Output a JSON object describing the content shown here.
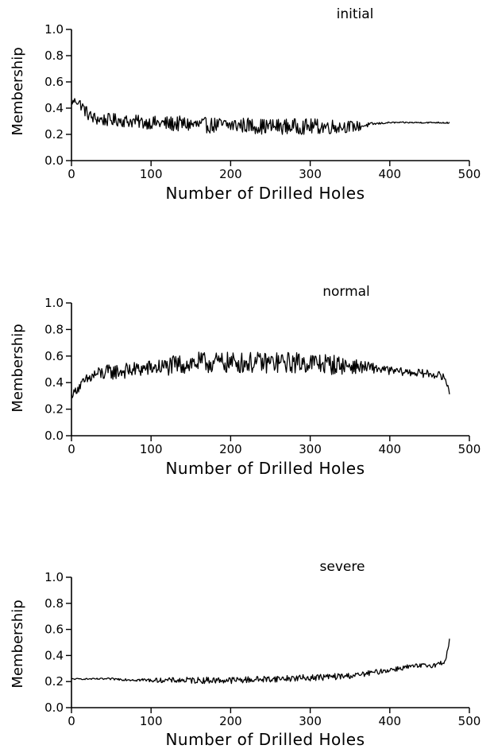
{
  "chart_data": [
    {
      "type": "line",
      "title": "initial",
      "xlabel": "Number of Drilled Holes",
      "ylabel": "Membership",
      "xlim": [
        0,
        500
      ],
      "ylim": [
        0.0,
        1.0
      ],
      "xticks": [
        0,
        100,
        200,
        300,
        400,
        500
      ],
      "yticks": [
        0.0,
        0.2,
        0.4,
        0.6,
        0.8,
        1.0
      ],
      "xtick_labels": [
        "0",
        "100",
        "200",
        "300",
        "400",
        "500"
      ],
      "ytick_labels": [
        "0.0",
        "0.2",
        "0.4",
        "0.6",
        "0.8",
        "1.0"
      ],
      "grid": false,
      "series": [
        {
          "x": [
            0,
            5,
            10,
            15,
            20,
            25,
            30,
            40,
            50,
            60,
            70,
            80,
            90,
            100,
            120,
            140,
            160,
            180,
            200,
            220,
            240,
            260,
            280,
            300,
            320,
            340,
            360,
            370,
            380,
            400,
            420,
            440,
            460,
            475
          ],
          "values": [
            0.44,
            0.46,
            0.44,
            0.4,
            0.36,
            0.33,
            0.32,
            0.31,
            0.31,
            0.31,
            0.3,
            0.3,
            0.29,
            0.29,
            0.28,
            0.28,
            0.27,
            0.27,
            0.27,
            0.27,
            0.26,
            0.26,
            0.26,
            0.26,
            0.26,
            0.26,
            0.26,
            0.27,
            0.28,
            0.29,
            0.29,
            0.29,
            0.29,
            0.29
          ],
          "amplitude": [
            0.02,
            0.03,
            0.04,
            0.05,
            0.05,
            0.05,
            0.05,
            0.05,
            0.05,
            0.05,
            0.05,
            0.05,
            0.05,
            0.05,
            0.06,
            0.06,
            0.06,
            0.06,
            0.06,
            0.06,
            0.06,
            0.06,
            0.06,
            0.06,
            0.06,
            0.05,
            0.04,
            0.02,
            0.01,
            0.005,
            0.005,
            0.005,
            0.005,
            0.01
          ]
        }
      ]
    },
    {
      "type": "line",
      "title": "normal",
      "xlabel": "Number of Drilled Holes",
      "ylabel": "Membership",
      "xlim": [
        0,
        500
      ],
      "ylim": [
        0.0,
        1.0
      ],
      "xticks": [
        0,
        100,
        200,
        300,
        400,
        500
      ],
      "yticks": [
        0.0,
        0.2,
        0.4,
        0.6,
        0.8,
        1.0
      ],
      "xtick_labels": [
        "0",
        "100",
        "200",
        "300",
        "400",
        "500"
      ],
      "ytick_labels": [
        "0.0",
        "0.2",
        "0.4",
        "0.6",
        "0.8",
        "1.0"
      ],
      "grid": false,
      "series": [
        {
          "x": [
            0,
            5,
            10,
            20,
            30,
            50,
            70,
            100,
            120,
            140,
            160,
            180,
            200,
            220,
            240,
            260,
            280,
            300,
            320,
            340,
            360,
            380,
            400,
            420,
            440,
            460,
            470,
            475
          ],
          "values": [
            0.3,
            0.34,
            0.37,
            0.42,
            0.46,
            0.48,
            0.49,
            0.51,
            0.52,
            0.54,
            0.55,
            0.55,
            0.55,
            0.55,
            0.55,
            0.55,
            0.55,
            0.55,
            0.54,
            0.53,
            0.52,
            0.51,
            0.49,
            0.48,
            0.47,
            0.46,
            0.43,
            0.32
          ],
          "amplitude": [
            0.02,
            0.03,
            0.04,
            0.05,
            0.06,
            0.06,
            0.06,
            0.06,
            0.07,
            0.08,
            0.08,
            0.08,
            0.08,
            0.08,
            0.08,
            0.08,
            0.08,
            0.08,
            0.08,
            0.07,
            0.05,
            0.04,
            0.03,
            0.03,
            0.03,
            0.03,
            0.03,
            0.02
          ]
        }
      ]
    },
    {
      "type": "line",
      "title": "severe",
      "xlabel": "Number of Drilled Holes",
      "ylabel": "Membership",
      "xlim": [
        0,
        500
      ],
      "ylim": [
        0.0,
        1.0
      ],
      "xticks": [
        0,
        100,
        200,
        300,
        400,
        500
      ],
      "yticks": [
        0.0,
        0.2,
        0.4,
        0.6,
        0.8,
        1.0
      ],
      "xtick_labels": [
        "0",
        "100",
        "200",
        "300",
        "400",
        "500"
      ],
      "ytick_labels": [
        "0.0",
        "0.2",
        "0.4",
        "0.6",
        "0.8",
        "1.0"
      ],
      "grid": false,
      "series": [
        {
          "x": [
            0,
            20,
            50,
            100,
            150,
            200,
            250,
            300,
            340,
            360,
            380,
            400,
            420,
            440,
            460,
            470,
            473,
            475
          ],
          "values": [
            0.22,
            0.22,
            0.22,
            0.21,
            0.21,
            0.21,
            0.22,
            0.23,
            0.24,
            0.25,
            0.27,
            0.29,
            0.31,
            0.32,
            0.33,
            0.36,
            0.45,
            0.52
          ],
          "amplitude": [
            0.005,
            0.005,
            0.008,
            0.015,
            0.025,
            0.025,
            0.025,
            0.025,
            0.025,
            0.02,
            0.02,
            0.02,
            0.02,
            0.02,
            0.02,
            0.02,
            0.02,
            0.01
          ]
        }
      ]
    }
  ]
}
